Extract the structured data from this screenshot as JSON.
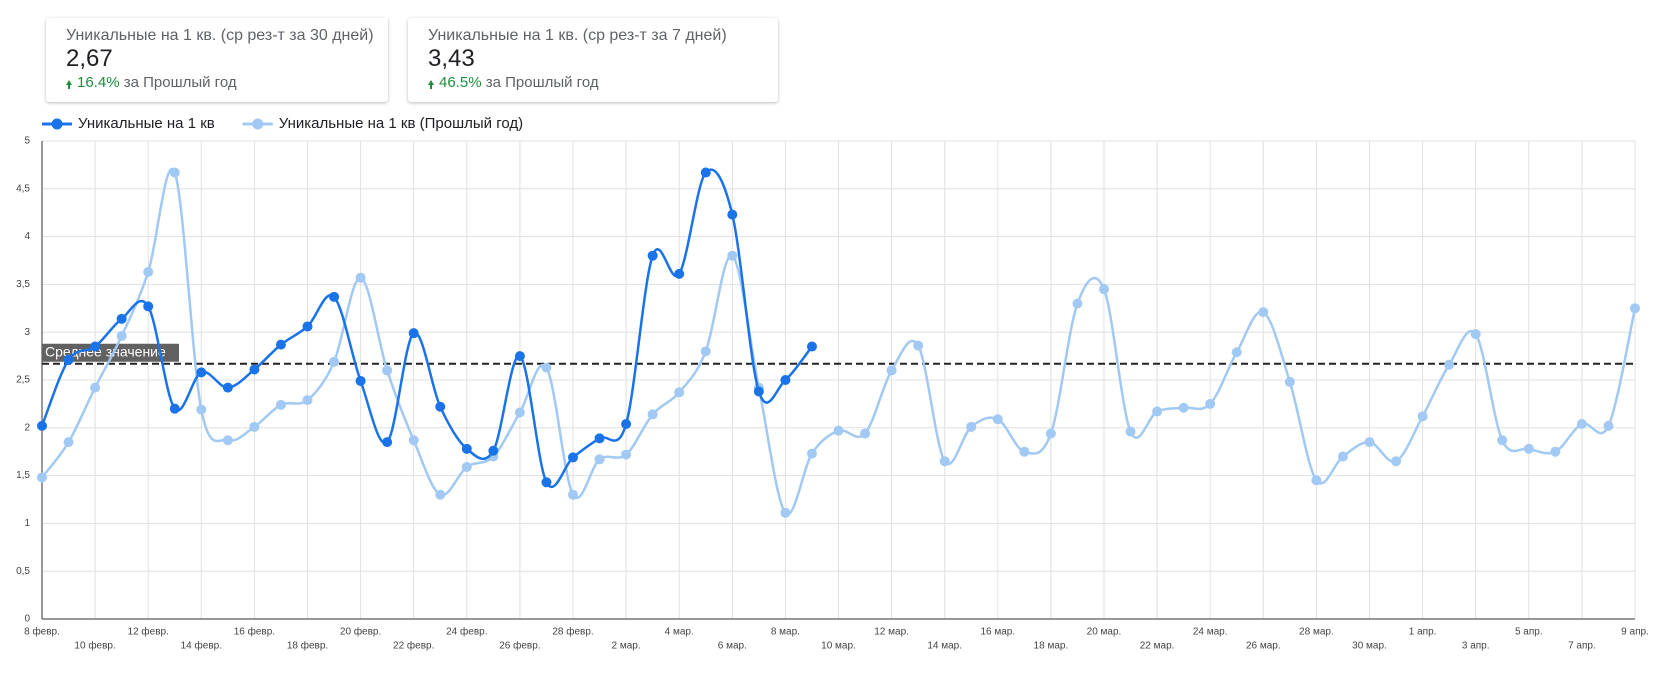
{
  "scorecards": [
    {
      "title": "Уникальные на 1 кв. (ср рез-т за 30 дней)",
      "value": "2,67",
      "change": "16.4%",
      "comparison": "за Прошлый год"
    },
    {
      "title": "Уникальные на 1 кв. (ср рез-т за 7 дней)",
      "value": "3,43",
      "change": "46.5%",
      "comparison": "за Прошлый год"
    }
  ],
  "chart_data": {
    "type": "line",
    "categories": [
      "8 февр.",
      null,
      "10 февр.",
      null,
      "12 февр.",
      null,
      "14 февр.",
      null,
      "16 февр.",
      null,
      "18 февр.",
      null,
      "20 февр.",
      null,
      "22 февр.",
      null,
      "24 февр.",
      null,
      "26 февр.",
      null,
      "28 февр.",
      null,
      "2 мар.",
      null,
      "4 мар.",
      null,
      "6 мар.",
      null,
      "8 мар.",
      null,
      "10 мар.",
      null,
      "12 мар.",
      null,
      "14 мар.",
      null,
      "16 мар.",
      null,
      "18 мар.",
      null,
      "20 мар.",
      null,
      "22 мар.",
      null,
      "24 мар.",
      null,
      "26 мар.",
      null,
      "28 мар.",
      null,
      "30 мар.",
      null,
      "1 апр.",
      null,
      "3 апр.",
      null,
      "5 апр.",
      null,
      "7 апр.",
      null,
      "9 апр."
    ],
    "series": [
      {
        "name": "Уникальные на 1 кв",
        "color": "#1a73e8",
        "values": [
          2.02,
          2.71,
          2.85,
          3.14,
          3.27,
          2.2,
          2.58,
          2.42,
          2.61,
          2.87,
          3.06,
          3.37,
          2.49,
          1.85,
          2.99,
          2.22,
          1.78,
          1.76,
          2.75,
          1.43,
          1.69,
          1.89,
          2.04,
          3.8,
          3.61,
          4.67,
          4.23,
          2.38,
          2.5,
          2.85,
          null,
          null,
          null,
          null,
          null,
          null,
          null,
          null,
          null,
          null,
          null,
          null,
          null,
          null,
          null,
          null,
          null,
          null,
          null,
          null,
          null,
          null,
          null,
          null,
          null,
          null,
          null,
          null,
          null,
          null,
          null
        ]
      },
      {
        "name": "Уникальные на 1 кв (Прошлый год)",
        "color": "#a1c9f4",
        "values": [
          1.48,
          1.85,
          2.42,
          2.96,
          3.63,
          4.67,
          2.19,
          1.87,
          2.01,
          2.24,
          2.29,
          2.69,
          3.57,
          2.6,
          1.87,
          1.3,
          1.59,
          1.7,
          2.16,
          2.63,
          1.3,
          1.67,
          1.72,
          2.14,
          2.37,
          2.8,
          3.8,
          2.42,
          1.11,
          1.73,
          1.97,
          1.94,
          2.6,
          2.86,
          1.65,
          2.01,
          2.09,
          1.75,
          1.94,
          3.3,
          3.45,
          1.96,
          2.17,
          2.21,
          2.25,
          2.79,
          3.21,
          2.48,
          1.45,
          1.7,
          1.85,
          1.65,
          2.12,
          2.66,
          2.98,
          1.87,
          1.78,
          1.75,
          2.04,
          2.02,
          3.25
        ]
      }
    ],
    "ylim": [
      0,
      5
    ],
    "yticks": [
      0,
      {
        "value": 0.5,
        "label": "0,5"
      },
      1,
      {
        "value": 1.5,
        "label": "1,5"
      },
      2,
      {
        "value": 2.5,
        "label": "2,5"
      },
      3,
      {
        "value": 3.5,
        "label": "3,5"
      },
      4,
      {
        "value": 4.5,
        "label": "4,5"
      },
      5
    ],
    "reference_line": {
      "value": 2.67,
      "label": "Среднее значение"
    },
    "grid": true,
    "legend": "top-left"
  }
}
